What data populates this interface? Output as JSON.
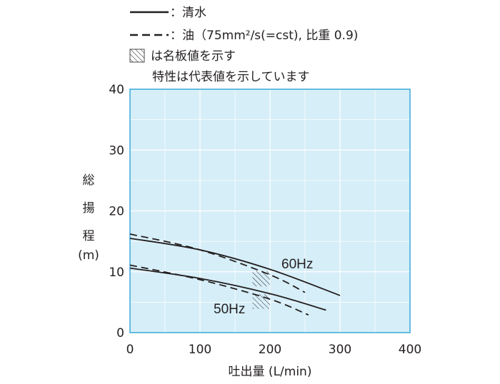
{
  "chart_data": {
    "type": "line",
    "legend": {
      "solid": "：清水",
      "dashed": "：油（75mm²/s(=cst), 比重 0.9)",
      "hatch": "は名板値を示す",
      "note": "特性は代表値を示しています"
    },
    "xlabel": "吐出量 (L/min)",
    "ylabel": [
      "総",
      "揚",
      "程",
      "(m)"
    ],
    "xlim": [
      0,
      400
    ],
    "ylim": [
      0,
      40
    ],
    "xticks": [
      "0",
      "100",
      "200",
      "300",
      "400"
    ],
    "yticks": [
      "0",
      "10",
      "20",
      "30",
      "40"
    ],
    "grid": true,
    "series": [
      {
        "name": "60Hz",
        "style": "solid",
        "points": [
          [
            0,
            15.5
          ],
          [
            100,
            13.6
          ],
          [
            200,
            10.4
          ],
          [
            300,
            6.1
          ]
        ]
      },
      {
        "style": "dashed",
        "points": [
          [
            0,
            16.2
          ],
          [
            100,
            13.6
          ],
          [
            200,
            9.5
          ],
          [
            250,
            6.6
          ]
        ]
      },
      {
        "name": "50Hz",
        "style": "solid",
        "points": [
          [
            0,
            10.6
          ],
          [
            100,
            8.9
          ],
          [
            200,
            6.4
          ],
          [
            280,
            3.7
          ]
        ]
      },
      {
        "style": "dashed",
        "points": [
          [
            0,
            11.1
          ],
          [
            100,
            8.7
          ],
          [
            200,
            5.5
          ],
          [
            255,
            2.9
          ]
        ]
      }
    ],
    "rated_regions": [
      {
        "x": [
          175,
          200
        ],
        "y": [
          7.6,
          10.1
        ]
      },
      {
        "x": [
          175,
          200
        ],
        "y": [
          3.9,
          6.3
        ]
      }
    ],
    "colors": {
      "plot_bg": "#d6eef8",
      "grid": "#ffffff",
      "axis": "#3aa9d8",
      "line": "#231f20"
    }
  }
}
